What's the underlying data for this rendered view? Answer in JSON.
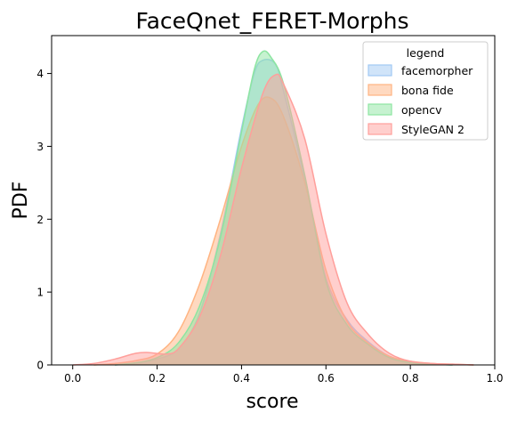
{
  "chart_data": {
    "type": "area",
    "title": "FaceQnet_FERET-Morphs",
    "xlabel": "score",
    "ylabel": "PDF",
    "xlim": [
      -0.05,
      1.0
    ],
    "ylim": [
      0,
      4.52
    ],
    "xticks": [
      0.0,
      0.2,
      0.4,
      0.6,
      0.8,
      1.0
    ],
    "xtick_labels": [
      "0.0",
      "0.2",
      "0.4",
      "0.6",
      "0.8",
      "1.0"
    ],
    "yticks": [
      0,
      1,
      2,
      3,
      4
    ],
    "ytick_labels": [
      "0",
      "1",
      "2",
      "3",
      "4"
    ],
    "grid": false,
    "legend": {
      "title": "legend",
      "position": "top-right"
    },
    "series": [
      {
        "name": "facemorpher",
        "color": "#a1c9f4",
        "x": [
          0.1,
          0.15,
          0.2,
          0.25,
          0.3,
          0.35,
          0.4,
          0.43,
          0.45,
          0.48,
          0.5,
          0.55,
          0.6,
          0.65,
          0.7,
          0.75,
          0.8,
          0.85,
          0.9
        ],
        "y": [
          0.0,
          0.02,
          0.08,
          0.22,
          0.7,
          1.8,
          3.25,
          4.0,
          4.18,
          4.13,
          3.75,
          2.55,
          1.2,
          0.62,
          0.32,
          0.12,
          0.04,
          0.01,
          0.0
        ]
      },
      {
        "name": "bona fide",
        "color": "#ffb482",
        "x": [
          0.05,
          0.1,
          0.15,
          0.2,
          0.25,
          0.3,
          0.35,
          0.4,
          0.44,
          0.47,
          0.5,
          0.55,
          0.6,
          0.65,
          0.7,
          0.75,
          0.8,
          0.85,
          0.9,
          0.95
        ],
        "y": [
          0.0,
          0.02,
          0.06,
          0.15,
          0.45,
          1.1,
          2.0,
          3.0,
          3.58,
          3.66,
          3.4,
          2.5,
          1.3,
          0.6,
          0.3,
          0.12,
          0.05,
          0.02,
          0.01,
          0.0
        ]
      },
      {
        "name": "opencv",
        "color": "#8de5a1",
        "x": [
          0.1,
          0.15,
          0.2,
          0.25,
          0.3,
          0.35,
          0.4,
          0.43,
          0.45,
          0.47,
          0.5,
          0.55,
          0.6,
          0.65,
          0.7,
          0.75,
          0.8,
          0.85,
          0.9
        ],
        "y": [
          0.0,
          0.03,
          0.1,
          0.3,
          0.8,
          1.75,
          3.2,
          4.05,
          4.3,
          4.22,
          3.85,
          2.6,
          1.15,
          0.55,
          0.28,
          0.1,
          0.03,
          0.01,
          0.0
        ]
      },
      {
        "name": "StyleGAN 2",
        "color": "#ff9f9b",
        "x": [
          0.0,
          0.05,
          0.1,
          0.15,
          0.18,
          0.22,
          0.25,
          0.3,
          0.35,
          0.4,
          0.45,
          0.48,
          0.5,
          0.55,
          0.6,
          0.65,
          0.7,
          0.75,
          0.8,
          0.85,
          0.9,
          0.95
        ],
        "y": [
          0.0,
          0.02,
          0.08,
          0.16,
          0.17,
          0.15,
          0.22,
          0.65,
          1.5,
          2.7,
          3.72,
          3.98,
          3.85,
          3.1,
          1.8,
          0.85,
          0.42,
          0.16,
          0.05,
          0.02,
          0.01,
          0.0
        ]
      }
    ]
  }
}
